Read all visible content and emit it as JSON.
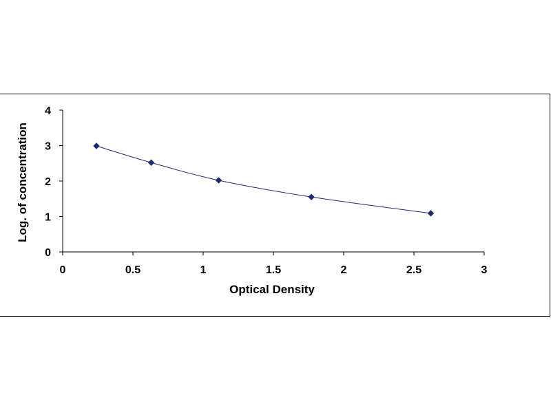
{
  "chart_data": {
    "type": "scatter",
    "title": "",
    "xlabel": "Optical Density",
    "ylabel": "Log. of concentration",
    "xlim": [
      0,
      3
    ],
    "ylim": [
      0,
      4
    ],
    "x_ticks": [
      "0",
      "0.5",
      "1",
      "1.5",
      "2",
      "2.5",
      "3"
    ],
    "y_ticks": [
      "0",
      "1",
      "2",
      "3",
      "4"
    ],
    "grid": false,
    "legend": "none",
    "line": "smooth-curve",
    "colors": {
      "series": "#1f2a6e",
      "axis": "#000000"
    },
    "series": [
      {
        "x": [
          0.24,
          0.63,
          1.11,
          1.77,
          2.62
        ],
        "y": [
          2.99,
          2.52,
          2.02,
          1.55,
          1.09
        ]
      }
    ]
  }
}
